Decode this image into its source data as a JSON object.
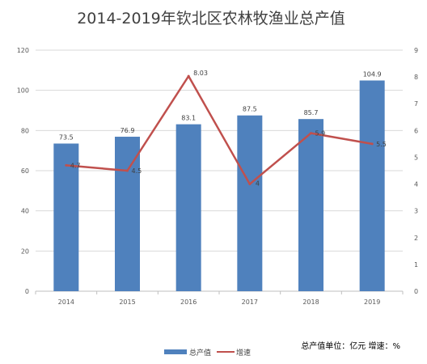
{
  "chart_data": {
    "type": "bar+line",
    "title": "2014-2019年钦北区农林牧渔业总产值",
    "categories": [
      "2014",
      "2015",
      "2016",
      "2017",
      "2018",
      "2019"
    ],
    "series": [
      {
        "name": "总产值",
        "kind": "bar",
        "axis": "left",
        "color": "#4F81BD",
        "values": [
          73.5,
          76.9,
          83.1,
          87.5,
          85.7,
          104.9
        ],
        "labels": [
          "73.5",
          "76.9",
          "83.1",
          "87.5",
          "85.7",
          "104.9"
        ]
      },
      {
        "name": "增速",
        "kind": "line",
        "axis": "right",
        "color": "#C0504D",
        "values": [
          4.7,
          4.5,
          8.03,
          4.0,
          5.9,
          5.5
        ],
        "labels": [
          "4.7",
          "4.5",
          "8.03",
          "4",
          "5.9",
          "5.5"
        ]
      }
    ],
    "y_left": {
      "min": 0,
      "max": 120,
      "step": 20,
      "ticks": [
        "0",
        "20",
        "40",
        "60",
        "80",
        "100",
        "120"
      ]
    },
    "y_right": {
      "min": 0,
      "max": 9,
      "step": 1,
      "ticks": [
        "0",
        "1",
        "2",
        "3",
        "4",
        "5",
        "6",
        "7",
        "8",
        "9"
      ]
    },
    "grid": true,
    "legend_position": "bottom-left",
    "note": "总产值单位：亿元   增速：%"
  }
}
